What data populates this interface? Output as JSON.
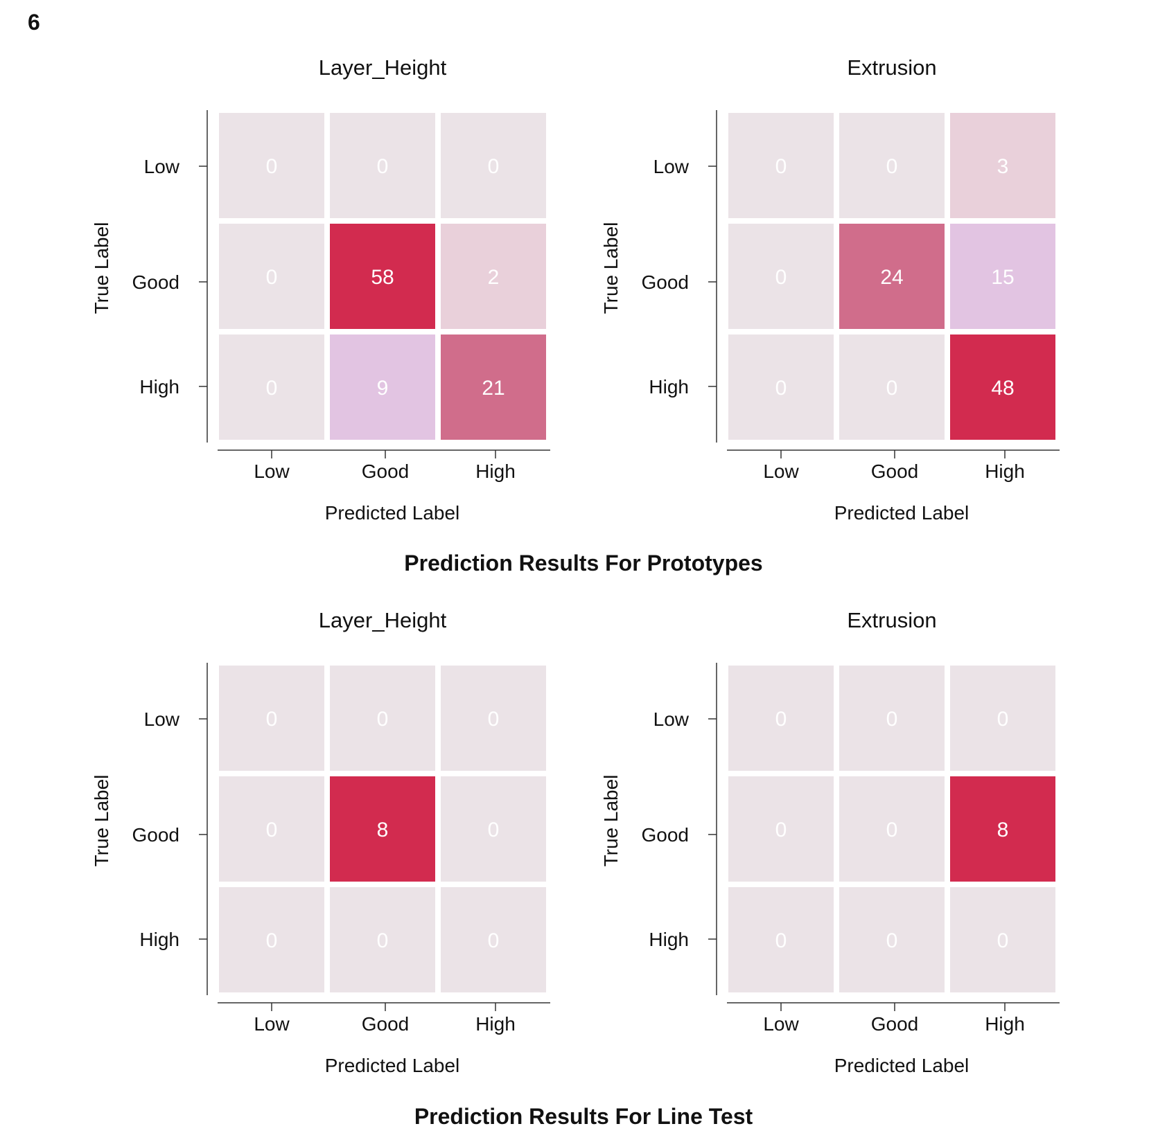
{
  "figure": {
    "panel_number": "6",
    "colors": {
      "zero_cell": "#ebe3e7",
      "cell_text": "#ffffff",
      "axis": "#333333",
      "high_value": "#d22b4f",
      "mid_value": "#d06d8b",
      "low_value": "#e2c4e2",
      "very_low_value": "#e9d0da"
    }
  },
  "sections": [
    {
      "title": "Prediction Results For Prototypes"
    },
    {
      "title": "Prediction Results For Line Test"
    }
  ],
  "chart_data": [
    {
      "type": "heatmap",
      "section": "Prediction Results For Prototypes",
      "title": "Layer_Height",
      "xlabel": "Predicted Label",
      "ylabel": "True Label",
      "x_categories": [
        "Low",
        "Good",
        "High"
      ],
      "y_categories": [
        "Low",
        "Good",
        "High"
      ],
      "values": [
        [
          0,
          0,
          0
        ],
        [
          0,
          58,
          2
        ],
        [
          0,
          9,
          21
        ]
      ],
      "cell_colors": [
        [
          "#ebe3e7",
          "#ebe3e7",
          "#ebe3e7"
        ],
        [
          "#ebe3e7",
          "#d22b4f",
          "#e9d0da"
        ],
        [
          "#ebe3e7",
          "#e2c4e2",
          "#d06d8b"
        ]
      ]
    },
    {
      "type": "heatmap",
      "section": "Prediction Results For Prototypes",
      "title": "Extrusion",
      "xlabel": "Predicted Label",
      "ylabel": "True Label",
      "x_categories": [
        "Low",
        "Good",
        "High"
      ],
      "y_categories": [
        "Low",
        "Good",
        "High"
      ],
      "values": [
        [
          0,
          0,
          3
        ],
        [
          0,
          24,
          15
        ],
        [
          0,
          0,
          48
        ]
      ],
      "cell_colors": [
        [
          "#ebe3e7",
          "#ebe3e7",
          "#e9d0da"
        ],
        [
          "#ebe3e7",
          "#d06d8b",
          "#e2c4e2"
        ],
        [
          "#ebe3e7",
          "#ebe3e7",
          "#d22b4f"
        ]
      ]
    },
    {
      "type": "heatmap",
      "section": "Prediction Results For Line Test",
      "title": "Layer_Height",
      "xlabel": "Predicted Label",
      "ylabel": "True Label",
      "x_categories": [
        "Low",
        "Good",
        "High"
      ],
      "y_categories": [
        "Low",
        "Good",
        "High"
      ],
      "values": [
        [
          0,
          0,
          0
        ],
        [
          0,
          8,
          0
        ],
        [
          0,
          0,
          0
        ]
      ],
      "cell_colors": [
        [
          "#ebe3e7",
          "#ebe3e7",
          "#ebe3e7"
        ],
        [
          "#ebe3e7",
          "#d22b4f",
          "#ebe3e7"
        ],
        [
          "#ebe3e7",
          "#ebe3e7",
          "#ebe3e7"
        ]
      ]
    },
    {
      "type": "heatmap",
      "section": "Prediction Results For Line Test",
      "title": "Extrusion",
      "xlabel": "Predicted Label",
      "ylabel": "True Label",
      "x_categories": [
        "Low",
        "Good",
        "High"
      ],
      "y_categories": [
        "Low",
        "Good",
        "High"
      ],
      "values": [
        [
          0,
          0,
          0
        ],
        [
          0,
          0,
          8
        ],
        [
          0,
          0,
          0
        ]
      ],
      "cell_colors": [
        [
          "#ebe3e7",
          "#ebe3e7",
          "#ebe3e7"
        ],
        [
          "#ebe3e7",
          "#ebe3e7",
          "#d22b4f"
        ],
        [
          "#ebe3e7",
          "#ebe3e7",
          "#ebe3e7"
        ]
      ]
    }
  ]
}
